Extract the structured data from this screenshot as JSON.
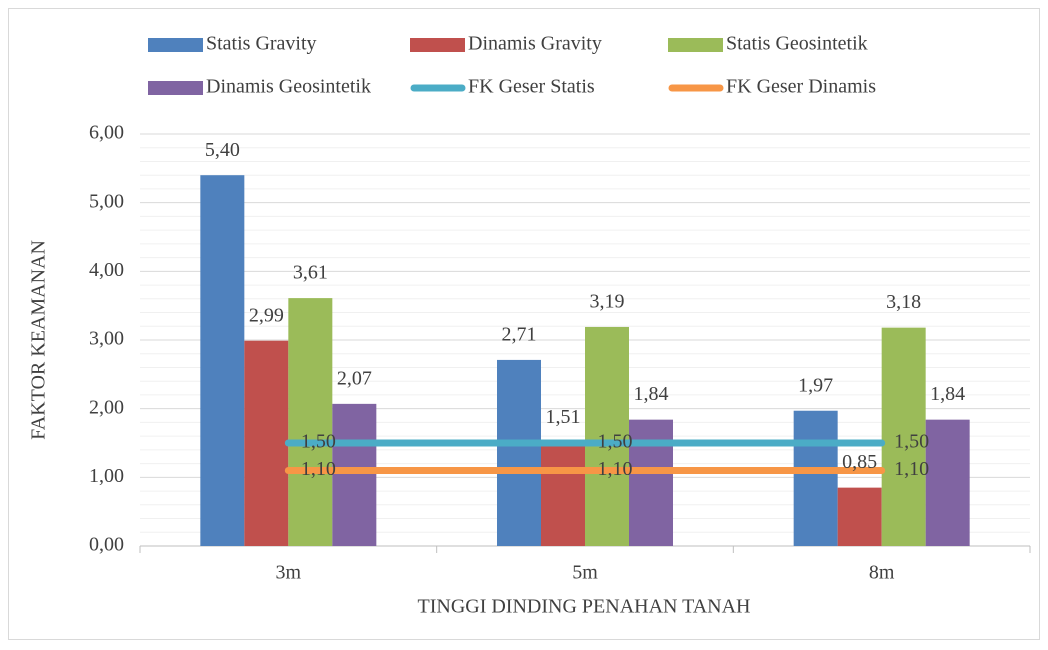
{
  "chart_data": {
    "type": "bar",
    "x_label": "TINGGI DINDING PENAHAN TANAH",
    "y_label": "FAKTOR KEAMANAN",
    "categories": [
      "3m",
      "5m",
      "8m"
    ],
    "series": [
      {
        "name": "Statis Gravity",
        "type": "bar",
        "color": "#4f81bd",
        "values": [
          5.4,
          2.71,
          1.97
        ],
        "value_labels": [
          "5,40",
          "2,71",
          "1,97"
        ]
      },
      {
        "name": "Dinamis Gravity",
        "type": "bar",
        "color": "#c0504d",
        "values": [
          2.99,
          1.51,
          0.85
        ],
        "value_labels": [
          "2,99",
          "1,51",
          "0,85"
        ]
      },
      {
        "name": "Statis Geosintetik",
        "type": "bar",
        "color": "#9bbb59",
        "values": [
          3.61,
          3.19,
          3.18
        ],
        "value_labels": [
          "3,61",
          "3,19",
          "3,18"
        ]
      },
      {
        "name": "Dinamis Geosintetik",
        "type": "bar",
        "color": "#8064a2",
        "values": [
          2.07,
          1.84,
          1.84
        ],
        "value_labels": [
          "2,07",
          "1,84",
          "1,84"
        ]
      },
      {
        "name": "FK Geser Statis",
        "type": "line",
        "color": "#4bacc6",
        "values": [
          1.5,
          1.5,
          1.5
        ],
        "value_labels": [
          "1,50",
          "1,50",
          "1,50"
        ]
      },
      {
        "name": "FK Geser Dinamis",
        "type": "line",
        "color": "#f79646",
        "values": [
          1.1,
          1.1,
          1.1
        ],
        "value_labels": [
          "1,10",
          "1,10",
          "1,10"
        ]
      }
    ],
    "ylim": [
      0,
      6
    ],
    "yticks": [
      {
        "value": 0,
        "label": "0,00"
      },
      {
        "value": 1,
        "label": "1,00"
      },
      {
        "value": 2,
        "label": "2,00"
      },
      {
        "value": 3,
        "label": "3,00"
      },
      {
        "value": 4,
        "label": "4,00"
      },
      {
        "value": 5,
        "label": "5,00"
      },
      {
        "value": 6,
        "label": "6,00"
      }
    ],
    "yminorticks": [
      0.2,
      0.4,
      0.6,
      0.8,
      1.2,
      1.4,
      1.6,
      1.8,
      2.2,
      2.4,
      2.6,
      2.8,
      3.2,
      3.4,
      3.6,
      3.8,
      4.2,
      4.4,
      4.6,
      4.8,
      5.2,
      5.4,
      5.6,
      5.8
    ],
    "grid": true,
    "legend": "top"
  }
}
